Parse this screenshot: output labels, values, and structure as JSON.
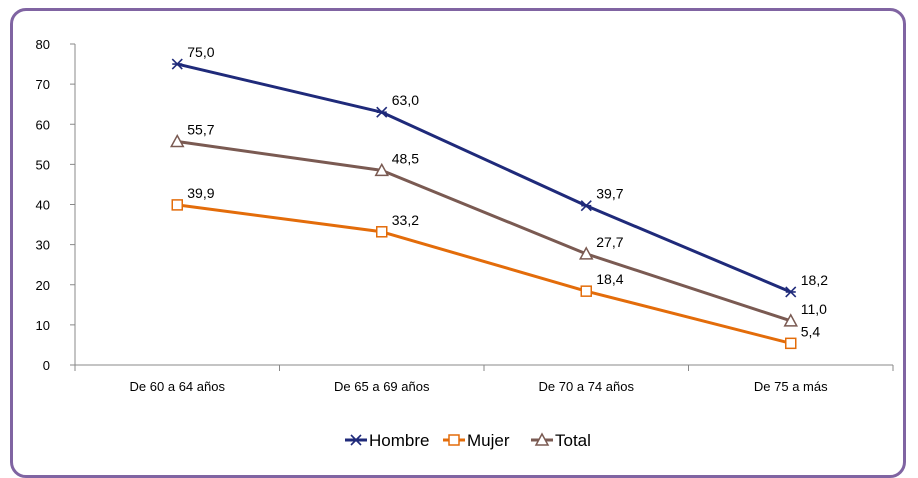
{
  "chart_data": {
    "type": "line",
    "categories": [
      "De 60 a 64 años",
      "De 65 a 69 años",
      "De 70 a 74 años",
      "De 75 a más"
    ],
    "series": [
      {
        "name": "Hombre",
        "values": [
          75.0,
          63.0,
          39.7,
          18.2
        ],
        "labels": [
          "75,0",
          "63,0",
          "39,7",
          "18,2"
        ],
        "color": "#1f2a7a",
        "marker": "star-icon"
      },
      {
        "name": "Mujer",
        "values": [
          39.9,
          33.2,
          18.4,
          5.4
        ],
        "labels": [
          "39,9",
          "33,2",
          "18,4",
          "5,4"
        ],
        "color": "#e36c0a",
        "marker": "square-icon"
      },
      {
        "name": "Total",
        "values": [
          55.7,
          48.5,
          27.7,
          11.0
        ],
        "labels": [
          "55,7",
          "48,5",
          "27,7",
          "11,0"
        ],
        "color": "#7a5a52",
        "marker": "triangle-icon"
      }
    ],
    "ylim": [
      0,
      80
    ],
    "yticks": [
      "0",
      "10",
      "20",
      "30",
      "40",
      "50",
      "60",
      "70",
      "80"
    ],
    "grid": false,
    "legend": "bottom",
    "frame_color": "#8064a2"
  }
}
